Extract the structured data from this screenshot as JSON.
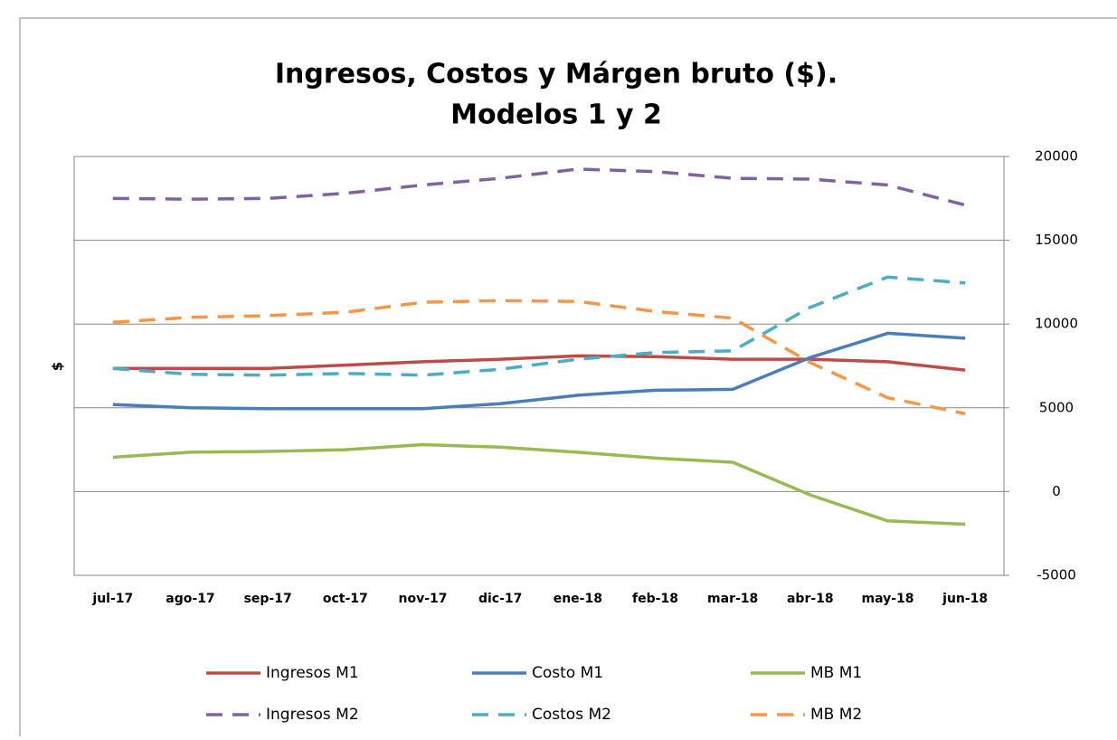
{
  "chart_data": {
    "type": "line",
    "title": [
      "Ingresos, Costos y Márgen bruto ($).",
      "Modelos 1 y 2"
    ],
    "y_label": "$",
    "categories": [
      "jul-17",
      "ago-17",
      "sep-17",
      "oct-17",
      "nov-17",
      "dic-17",
      "ene-18",
      "feb-18",
      "mar-18",
      "abr-18",
      "may-18",
      "jun-18"
    ],
    "series": [
      {
        "name": "Ingresos M1",
        "color": "#be4b48",
        "style": "solid",
        "values": [
          7350,
          7350,
          7350,
          7550,
          7750,
          7900,
          8100,
          8050,
          7900,
          7900,
          7750,
          7250
        ]
      },
      {
        "name": "Costo M1",
        "color": "#4a7ebb",
        "style": "solid",
        "values": [
          5200,
          5000,
          4950,
          4950,
          4950,
          5250,
          5750,
          6050,
          6100,
          8000,
          9450,
          9150
        ]
      },
      {
        "name": "MB M1",
        "color": "#98b954",
        "style": "solid",
        "values": [
          2050,
          2350,
          2400,
          2500,
          2800,
          2650,
          2350,
          2000,
          1750,
          -200,
          -1750,
          -1950
        ]
      },
      {
        "name": "Ingresos M2",
        "color": "#7e62a1",
        "style": "dashed",
        "values": [
          17500,
          17450,
          17500,
          17800,
          18300,
          18700,
          19250,
          19100,
          18700,
          18650,
          18300,
          17100
        ]
      },
      {
        "name": "Costos M2",
        "color": "#4bacc6",
        "style": "dashed",
        "values": [
          7350,
          7000,
          6950,
          7050,
          6950,
          7300,
          7900,
          8300,
          8400,
          11000,
          12800,
          12450
        ]
      },
      {
        "name": "MB M2",
        "color": "#f79646",
        "style": "dashed",
        "values": [
          10100,
          10400,
          10500,
          10700,
          11300,
          11400,
          11350,
          10750,
          10350,
          7700,
          5600,
          4650
        ]
      }
    ],
    "ylim": [
      -5000,
      20000
    ],
    "yticks": [
      -5000,
      0,
      5000,
      10000,
      15000,
      20000
    ],
    "y_axis_side": "right",
    "grid": true,
    "legend": "bottom"
  }
}
